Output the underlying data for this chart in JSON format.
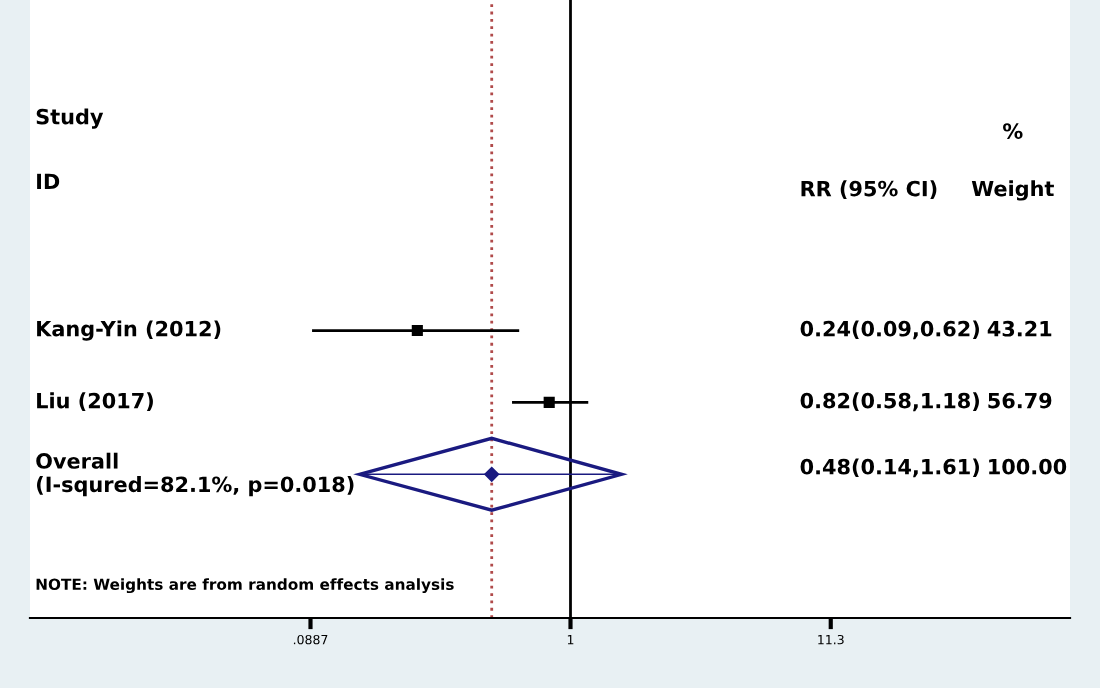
{
  "chart_data": {
    "type": "scatter",
    "orientation": "horizontal",
    "log": "x",
    "categories": [
      "Kang-Yin (2012)",
      "Liu (2017)",
      "Overall\n(I-squred=82.1%, p=0.018)"
    ],
    "series": [
      {
        "color": "#000000",
        "marker": "square",
        "values": [
          0.24,
          0.82,
          null
        ],
        "errors": [
          [
            0.09,
            0.62
          ],
          [
            0.58,
            1.18
          ],
          null
        ]
      },
      {
        "color": "#1a1a80",
        "marker": "diamond",
        "values": [
          null,
          null,
          0.48
        ],
        "errors": [
          null,
          null,
          [
            0.14,
            1.61
          ]
        ]
      }
    ],
    "value_labels": [
      "0.24(0.09,0.62)",
      "0.82(0.58,1.18)",
      "0.48(0.14,1.61)"
    ],
    "xlim": [
      0.0065,
      105
    ],
    "xticks": [
      {
        "value": 0.0887,
        "label": ".0887"
      },
      1,
      11.3
    ],
    "ref_lines": [
      {
        "axis": "x",
        "value": 1,
        "color": "#000000",
        "line_style": "solid"
      },
      {
        "axis": "x",
        "value": 0.48,
        "color": "#b04a4a",
        "line_style": "dotted"
      }
    ],
    "annotations": [
      "Study",
      "ID",
      "%",
      "RR (95% CI)",
      "Weight",
      "43.21",
      "56.79",
      "100.00",
      "NOTE: Weights are from random effects analysis"
    ],
    "grid": false,
    "legend": false
  }
}
